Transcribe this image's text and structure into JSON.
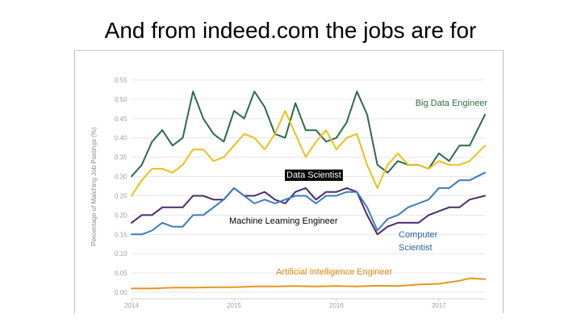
{
  "slide": {
    "title": "And from indeed.com the jobs are for"
  },
  "chart_data": {
    "type": "line",
    "title": "",
    "xlabel": "",
    "ylabel": "Percentage of Matching Job Postings (%)",
    "xlim": [
      2014.0,
      2017.45
    ],
    "ylim": [
      0.0,
      0.55
    ],
    "x_ticks": [
      "2014",
      "2015",
      "2016",
      "2017"
    ],
    "y_ticks": [
      "0.00",
      "0.05",
      "0.10",
      "0.15",
      "0.20",
      "0.25",
      "0.30",
      "0.35",
      "0.40",
      "0.45",
      "0.50",
      "0.55"
    ],
    "grid": true,
    "legend": "inline-labels",
    "series": [
      {
        "name": "Big Data Engineer",
        "color": "#2e6b47",
        "x": [
          2014.0,
          2014.1,
          2014.2,
          2014.3,
          2014.4,
          2014.5,
          2014.6,
          2014.7,
          2014.8,
          2014.9,
          2015.0,
          2015.1,
          2015.2,
          2015.3,
          2015.4,
          2015.5,
          2015.6,
          2015.7,
          2015.8,
          2015.9,
          2016.0,
          2016.1,
          2016.2,
          2016.3,
          2016.4,
          2016.5,
          2016.6,
          2016.7,
          2016.8,
          2016.9,
          2017.0,
          2017.1,
          2017.2,
          2017.3,
          2017.45
        ],
        "y": [
          0.3,
          0.33,
          0.39,
          0.42,
          0.38,
          0.4,
          0.52,
          0.45,
          0.41,
          0.39,
          0.47,
          0.45,
          0.52,
          0.48,
          0.41,
          0.4,
          0.49,
          0.42,
          0.42,
          0.39,
          0.4,
          0.44,
          0.52,
          0.46,
          0.33,
          0.31,
          0.34,
          0.33,
          0.33,
          0.32,
          0.36,
          0.34,
          0.38,
          0.38,
          0.46
        ]
      },
      {
        "name": "Data Scientist",
        "color": "#e8c21a",
        "x": [
          2014.0,
          2014.1,
          2014.2,
          2014.3,
          2014.4,
          2014.5,
          2014.6,
          2014.7,
          2014.8,
          2014.9,
          2015.0,
          2015.1,
          2015.2,
          2015.3,
          2015.4,
          2015.5,
          2015.6,
          2015.7,
          2015.8,
          2015.9,
          2016.0,
          2016.1,
          2016.2,
          2016.3,
          2016.4,
          2016.5,
          2016.6,
          2016.7,
          2016.8,
          2016.9,
          2017.0,
          2017.1,
          2017.2,
          2017.3,
          2017.45
        ],
        "y": [
          0.25,
          0.29,
          0.32,
          0.32,
          0.31,
          0.33,
          0.37,
          0.37,
          0.34,
          0.35,
          0.38,
          0.41,
          0.4,
          0.37,
          0.41,
          0.47,
          0.41,
          0.35,
          0.39,
          0.42,
          0.37,
          0.4,
          0.41,
          0.33,
          0.27,
          0.33,
          0.36,
          0.33,
          0.33,
          0.32,
          0.34,
          0.33,
          0.33,
          0.34,
          0.38
        ]
      },
      {
        "name": "Machine Learning Engineer",
        "color": "#4b2b6b",
        "x": [
          2014.0,
          2014.1,
          2014.2,
          2014.3,
          2014.4,
          2014.5,
          2014.6,
          2014.7,
          2014.8,
          2014.9,
          2015.0,
          2015.1,
          2015.2,
          2015.3,
          2015.4,
          2015.5,
          2015.6,
          2015.7,
          2015.8,
          2015.9,
          2016.0,
          2016.1,
          2016.2,
          2016.3,
          2016.4,
          2016.5,
          2016.6,
          2016.7,
          2016.8,
          2016.9,
          2017.0,
          2017.1,
          2017.2,
          2017.3,
          2017.45
        ],
        "y": [
          0.18,
          0.2,
          0.2,
          0.22,
          0.22,
          0.22,
          0.25,
          0.25,
          0.24,
          0.24,
          0.27,
          0.25,
          0.25,
          0.26,
          0.24,
          0.23,
          0.26,
          0.27,
          0.24,
          0.26,
          0.26,
          0.27,
          0.26,
          0.2,
          0.15,
          0.17,
          0.18,
          0.18,
          0.18,
          0.2,
          0.21,
          0.22,
          0.22,
          0.24,
          0.25
        ]
      },
      {
        "name": "Computer Scientist",
        "color": "#3b7bbf",
        "x": [
          2014.0,
          2014.1,
          2014.2,
          2014.3,
          2014.4,
          2014.5,
          2014.6,
          2014.7,
          2014.8,
          2014.9,
          2015.0,
          2015.1,
          2015.2,
          2015.3,
          2015.4,
          2015.5,
          2015.6,
          2015.7,
          2015.8,
          2015.9,
          2016.0,
          2016.1,
          2016.2,
          2016.3,
          2016.4,
          2016.5,
          2016.6,
          2016.7,
          2016.8,
          2016.9,
          2017.0,
          2017.1,
          2017.2,
          2017.3,
          2017.45
        ],
        "y": [
          0.15,
          0.15,
          0.16,
          0.18,
          0.17,
          0.17,
          0.2,
          0.2,
          0.22,
          0.24,
          0.27,
          0.25,
          0.23,
          0.24,
          0.23,
          0.24,
          0.25,
          0.25,
          0.23,
          0.25,
          0.25,
          0.26,
          0.26,
          0.22,
          0.16,
          0.19,
          0.2,
          0.22,
          0.23,
          0.24,
          0.27,
          0.27,
          0.29,
          0.29,
          0.31
        ]
      },
      {
        "name": "Artificial Intelligence Engineer",
        "color": "#e8961a",
        "x": [
          2014.0,
          2014.2,
          2014.4,
          2014.6,
          2014.8,
          2015.0,
          2015.2,
          2015.4,
          2015.6,
          2015.8,
          2016.0,
          2016.2,
          2016.4,
          2016.6,
          2016.8,
          2017.0,
          2017.2,
          2017.3,
          2017.45
        ],
        "y": [
          0.01,
          0.01,
          0.012,
          0.012,
          0.013,
          0.013,
          0.015,
          0.015,
          0.016,
          0.015,
          0.016,
          0.015,
          0.017,
          0.016,
          0.02,
          0.022,
          0.03,
          0.036,
          0.034
        ]
      }
    ],
    "annotations": [
      {
        "text": "Big Data Engineer",
        "color": "#2e6b47",
        "boxed": false
      },
      {
        "text": "Data Scientist",
        "color": "#ffffff",
        "boxed": true
      },
      {
        "text": "Machine Learning Engineer",
        "color": "#000000",
        "boxed": false
      },
      {
        "text": "Computer",
        "color": "#2b5fa3",
        "boxed": false
      },
      {
        "text": "Scientist",
        "color": "#2b5fa3",
        "boxed": false
      },
      {
        "text": "Artificial Intelligence Engineer",
        "color": "#d98a0f",
        "boxed": false
      }
    ]
  }
}
